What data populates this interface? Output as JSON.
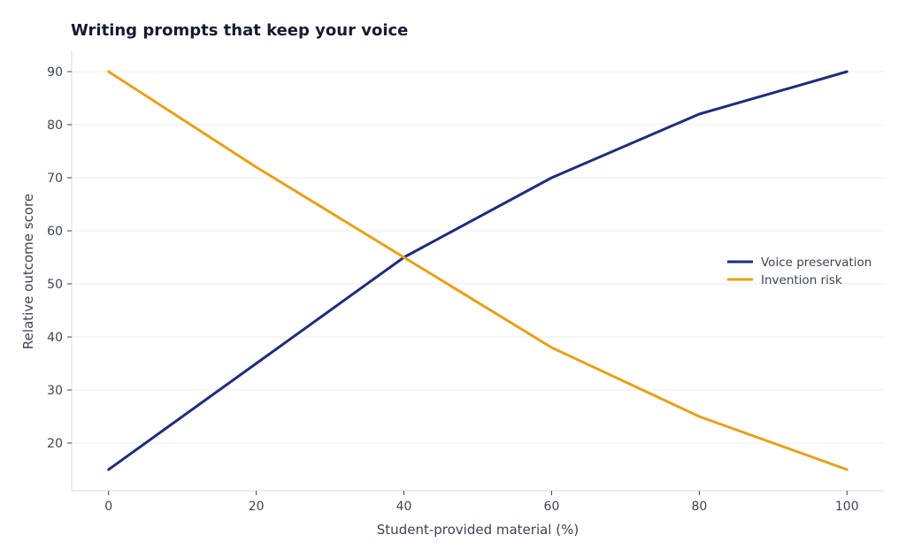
{
  "chart_data": {
    "type": "line",
    "title": "Writing prompts that keep your voice",
    "xlabel": "Student-provided material (%)",
    "ylabel": "Relative outcome score",
    "x": [
      0,
      20,
      40,
      60,
      80,
      100
    ],
    "xlim": [
      -5,
      105
    ],
    "ylim": [
      11,
      94
    ],
    "xticks": [
      0,
      20,
      40,
      60,
      80,
      100
    ],
    "yticks": [
      20,
      30,
      40,
      50,
      60,
      70,
      80,
      90
    ],
    "grid": "horizontal",
    "legend_position": "center-right",
    "series": [
      {
        "name": "Voice preservation",
        "values": [
          15,
          35,
          55,
          70,
          82,
          90
        ],
        "color": "#1f2d7a"
      },
      {
        "name": "Invention risk",
        "values": [
          90,
          72,
          55,
          38,
          25,
          15
        ],
        "color": "#e8a019"
      }
    ]
  }
}
